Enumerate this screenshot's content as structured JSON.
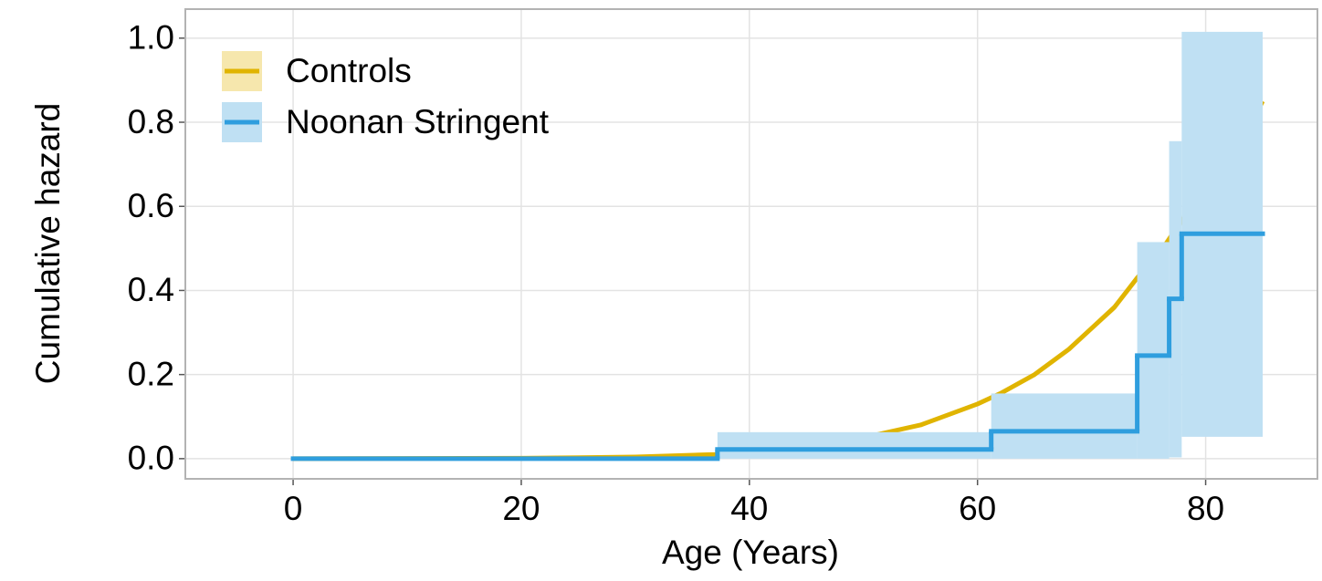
{
  "chart_data": {
    "type": "step",
    "x_label": "Age (Years)",
    "y_label": "Cumulative hazard",
    "xlim": [
      -9.45,
      89.8
    ],
    "ylim": [
      -0.048,
      1.069
    ],
    "xticks": [
      0,
      20,
      40,
      60,
      80
    ],
    "yticks": [
      {
        "value": 0,
        "label": "0.0"
      },
      {
        "value": 0.2,
        "label": "0.2"
      },
      {
        "value": 0.4,
        "label": "0.4"
      },
      {
        "value": 0.6,
        "label": "0.6"
      },
      {
        "value": 0.8,
        "label": "0.8"
      },
      {
        "value": 1,
        "label": "1.0"
      }
    ],
    "grid": true,
    "legend": "top-left",
    "series": [
      {
        "name": "Controls",
        "color": "#e0b400",
        "band_color": "#f6e7ad",
        "step": false,
        "x": [
          0,
          20,
          30,
          37,
          40,
          45,
          50,
          55,
          60,
          62,
          65,
          68,
          70,
          72,
          74,
          76,
          78,
          80,
          82,
          84,
          85
        ],
        "values": [
          0,
          0.001,
          0.004,
          0.01,
          0.015,
          0.03,
          0.05,
          0.08,
          0.13,
          0.155,
          0.2,
          0.26,
          0.31,
          0.36,
          0.43,
          0.49,
          0.57,
          0.63,
          0.7,
          0.8,
          0.85
        ],
        "lower": [
          0,
          0.001,
          0.003,
          0.009,
          0.014,
          0.029,
          0.048,
          0.078,
          0.127,
          0.151,
          0.195,
          0.254,
          0.303,
          0.352,
          0.421,
          0.479,
          0.558,
          0.617,
          0.686,
          0.784,
          0.833
        ],
        "upper": [
          0,
          0.001,
          0.005,
          0.011,
          0.016,
          0.031,
          0.052,
          0.082,
          0.133,
          0.159,
          0.205,
          0.266,
          0.317,
          0.368,
          0.439,
          0.501,
          0.582,
          0.643,
          0.714,
          0.816,
          0.867
        ]
      },
      {
        "name": "Noonan Stringent",
        "color": "#2f9ede",
        "band_color": "#bfe0f3",
        "step": true,
        "x": [
          0,
          37.2,
          61.2,
          74,
          76.8,
          77.9,
          85
        ],
        "values": [
          0,
          0.022,
          0.065,
          0.245,
          0.38,
          0.535,
          0.535
        ],
        "lower": [
          0,
          0,
          0,
          0,
          0.003,
          0.052,
          0.052
        ],
        "upper": [
          0,
          0.063,
          0.155,
          0.515,
          0.755,
          1.015,
          1.015
        ]
      }
    ]
  }
}
